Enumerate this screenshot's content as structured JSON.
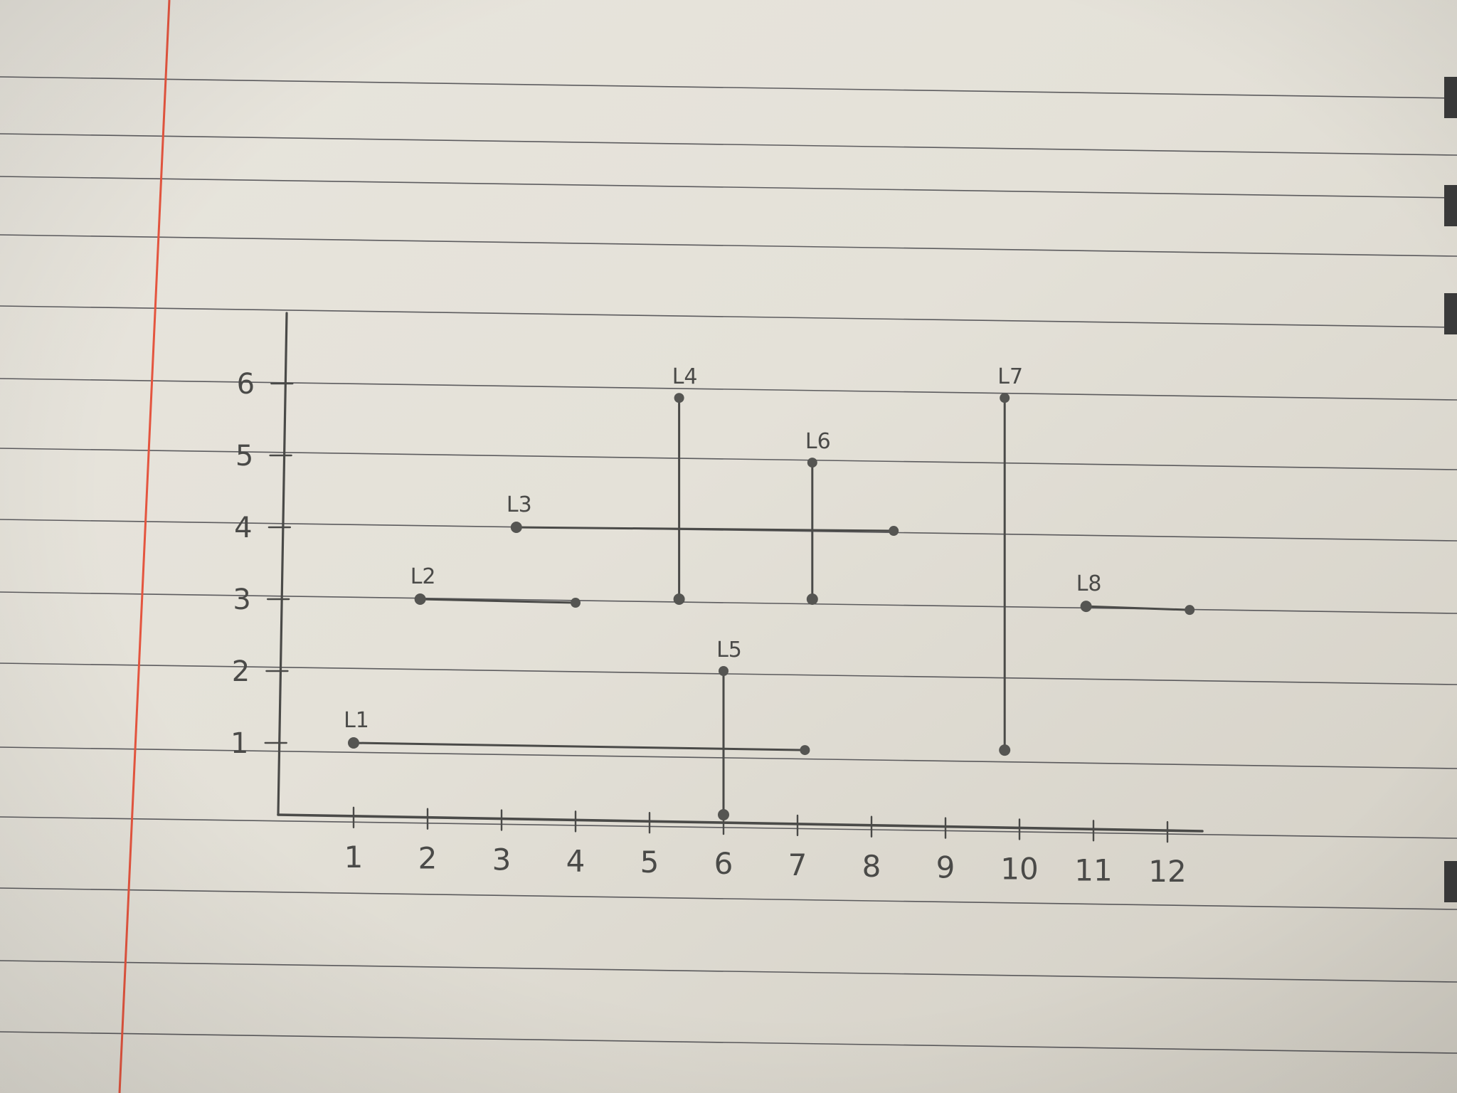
{
  "photo": {
    "subject": "hand-drawn graph on lined notebook paper",
    "margin_line_color": "#e4553f",
    "ruled_line_color": "#2f2f35",
    "pencil_color": "#4a4a48"
  },
  "chart_data": {
    "type": "line",
    "title": "",
    "xlabel": "",
    "ylabel": "",
    "x_ticks": [
      "1",
      "2",
      "3",
      "4",
      "5",
      "6",
      "7",
      "8",
      "9",
      "10",
      "11",
      "12"
    ],
    "y_ticks": [
      "1",
      "2",
      "3",
      "4",
      "5",
      "6"
    ],
    "xlim": [
      0,
      12.4
    ],
    "ylim": [
      0,
      6.8
    ],
    "grid": false,
    "segments": [
      {
        "name": "L1",
        "x": [
          1,
          7.1
        ],
        "y": [
          1,
          0.9
        ]
      },
      {
        "name": "L2",
        "x": [
          1.9,
          4
        ],
        "y": [
          3,
          2.95
        ]
      },
      {
        "name": "L3",
        "x": [
          3.2,
          8.3
        ],
        "y": [
          4,
          3.95
        ]
      },
      {
        "name": "L4",
        "x": [
          5.4,
          5.4
        ],
        "y": [
          3,
          5.8
        ]
      },
      {
        "name": "L5",
        "x": [
          6,
          6
        ],
        "y": [
          0,
          2
        ]
      },
      {
        "name": "L6",
        "x": [
          7.2,
          7.2
        ],
        "y": [
          3,
          4.9
        ]
      },
      {
        "name": "L7",
        "x": [
          9.8,
          9.8
        ],
        "y": [
          0.9,
          5.8
        ]
      },
      {
        "name": "L8",
        "x": [
          10.9,
          12.3
        ],
        "y": [
          2.9,
          2.85
        ]
      }
    ]
  }
}
